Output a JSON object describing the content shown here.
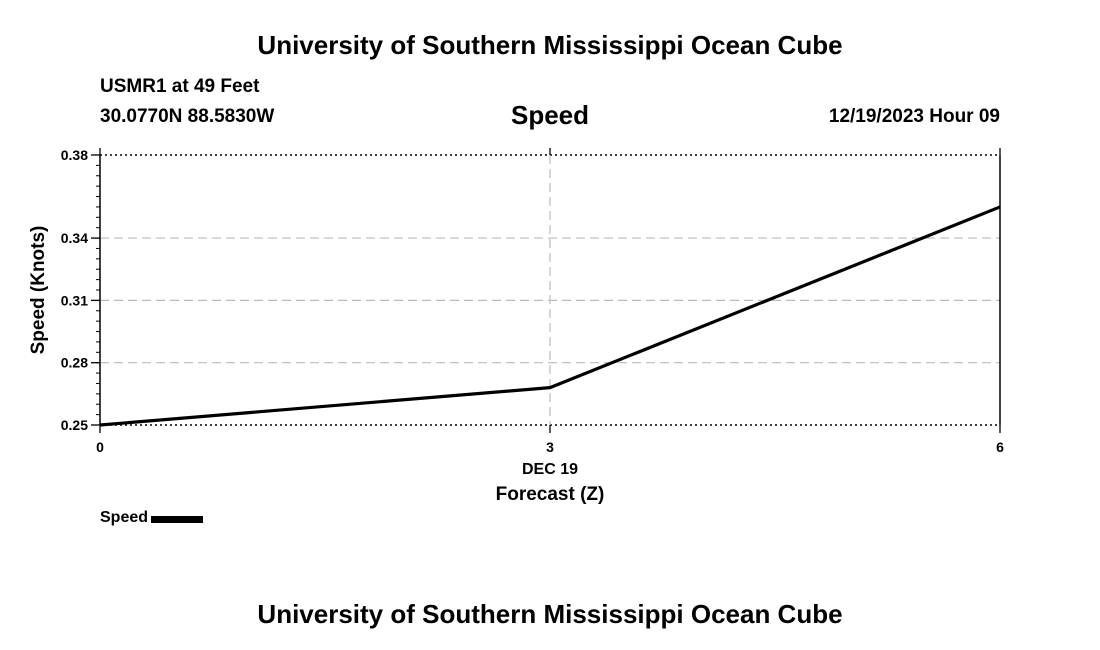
{
  "header": {
    "title": "University of Southern Mississippi Ocean Cube",
    "station": "USMR1 at 49 Feet",
    "coords": "30.0770N  88.5830W",
    "datetime": "12/19/2023 Hour 09"
  },
  "footer": {
    "title": "University of Southern Mississippi Ocean Cube"
  },
  "chart_data": {
    "type": "line",
    "title": "Speed",
    "xlabel": "Forecast (Z)",
    "xsublabel": "DEC 19",
    "ylabel": "Speed (Knots)",
    "xlim": [
      0,
      6
    ],
    "ylim": [
      0.25,
      0.38
    ],
    "xticks": [
      0,
      3,
      6
    ],
    "xtick_labels": [
      "0",
      "3",
      "6"
    ],
    "yticks": [
      0.25,
      0.28,
      0.31,
      0.34,
      0.38
    ],
    "ytick_labels": [
      "0.25",
      "0.28",
      "0.31",
      "0.34",
      "0.38"
    ],
    "grid": true,
    "legend": "bottom-left",
    "series": [
      {
        "name": "Speed",
        "color": "#000000",
        "x": [
          0,
          3,
          6
        ],
        "y": [
          0.25,
          0.268,
          0.355
        ]
      }
    ]
  }
}
